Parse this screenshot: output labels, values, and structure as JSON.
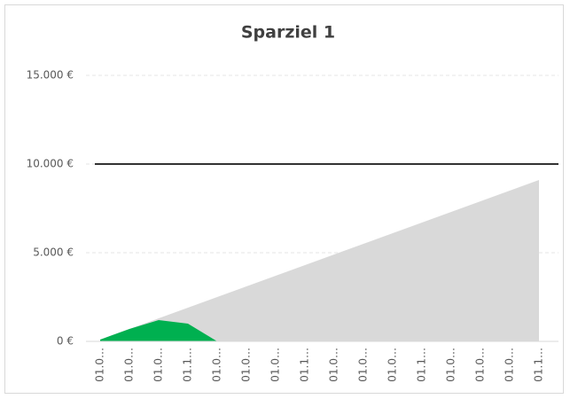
{
  "chart_data": {
    "type": "area",
    "title": "Sparziel 1",
    "categories": [
      "01.0…",
      "01.0…",
      "01.0…",
      "01.1…",
      "01.0…",
      "01.0…",
      "01.0…",
      "01.1…",
      "01.0…",
      "01.0…",
      "01.0…",
      "01.1…",
      "01.0…",
      "01.0…",
      "01.0…",
      "01.1…"
    ],
    "series": [
      {
        "color": "#d9d9d9",
        "values": [
          100,
          700,
          1300,
          1900,
          2500,
          3100,
          3700,
          4300,
          4900,
          5500,
          6100,
          6700,
          7300,
          7900,
          8500,
          9100
        ]
      },
      {
        "color": "#00b050",
        "values": [
          100,
          700,
          1200,
          1000,
          0,
          null,
          null,
          null,
          null,
          null,
          null,
          null,
          null,
          null,
          null,
          null
        ]
      }
    ],
    "goal": 10000,
    "goal_color": "#333333",
    "ylim": [
      0,
      15000
    ],
    "yticks": [
      {
        "value": 0,
        "label": "0 €"
      },
      {
        "value": 5000,
        "label": "5.000 €"
      },
      {
        "value": 10000,
        "label": "10.000 €"
      },
      {
        "value": 15000,
        "label": "15.000 €"
      }
    ],
    "grid": true
  }
}
